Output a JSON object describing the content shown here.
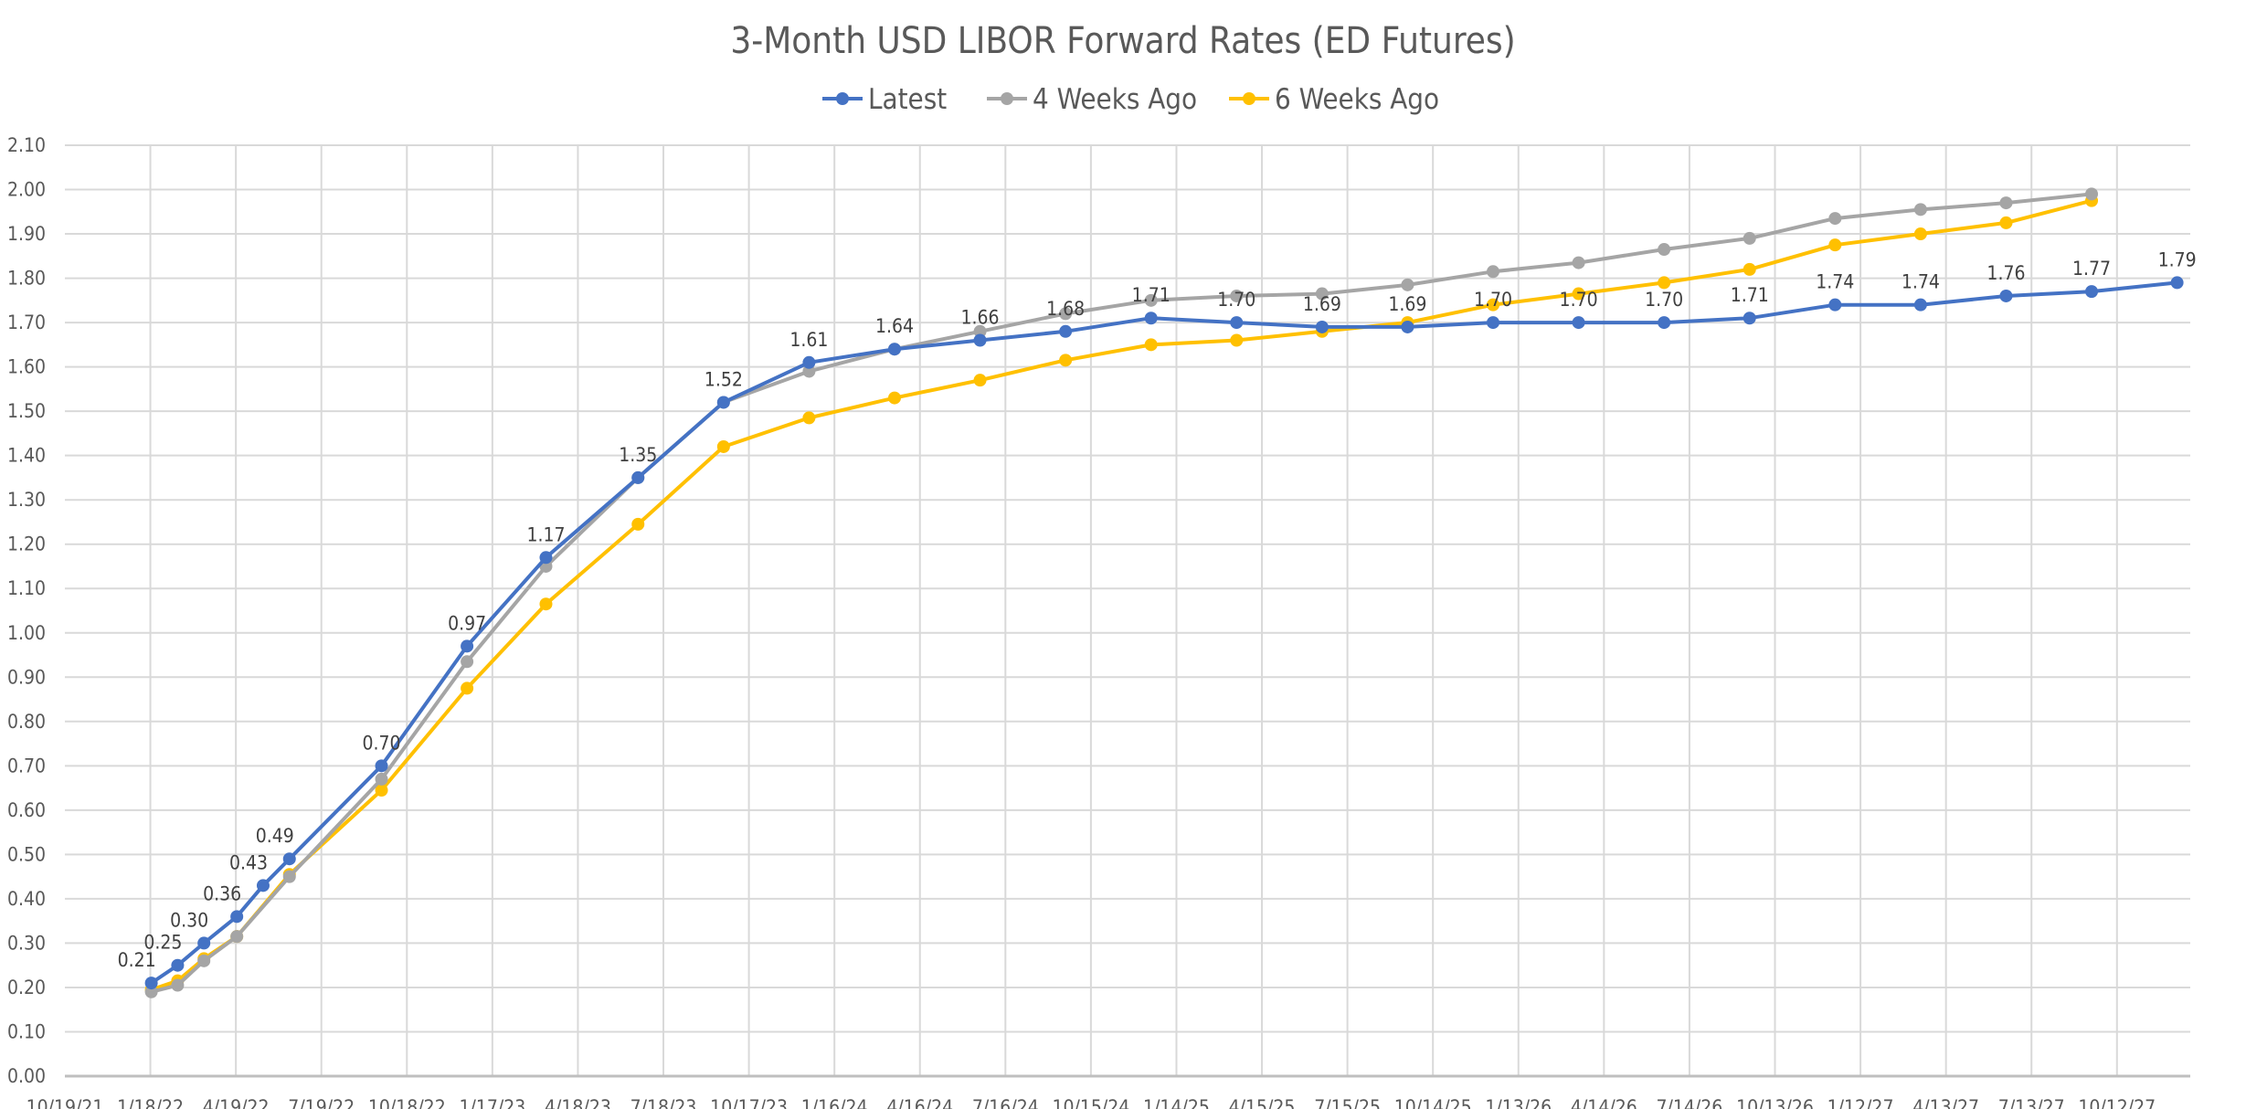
{
  "chart_data": {
    "type": "line",
    "title": "3-Month USD LIBOR Forward Rates (ED Futures)",
    "xlabel": "",
    "ylabel": "",
    "x_axis_type": "date",
    "xlim": [
      "2021-10-19",
      "2027-12-29"
    ],
    "ylim": [
      0,
      2.1
    ],
    "y_ticks": [
      "0.00",
      "0.10",
      "0.20",
      "0.30",
      "0.40",
      "0.50",
      "0.60",
      "0.70",
      "0.80",
      "0.90",
      "1.00",
      "1.10",
      "1.20",
      "1.30",
      "1.40",
      "1.50",
      "1.60",
      "1.70",
      "1.80",
      "1.90",
      "2.00",
      "2.10"
    ],
    "x_ticks": [
      "10/19/21",
      "1/18/22",
      "4/19/22",
      "7/19/22",
      "10/18/22",
      "1/17/23",
      "4/18/23",
      "7/18/23",
      "10/17/23",
      "1/16/24",
      "4/16/24",
      "7/16/24",
      "10/15/24",
      "1/14/25",
      "4/15/25",
      "7/15/25",
      "10/14/25",
      "1/13/26",
      "4/14/26",
      "7/14/26",
      "10/13/26",
      "1/12/27",
      "4/13/27",
      "7/13/27",
      "10/12/27"
    ],
    "grid": true,
    "legend_position": "top",
    "x": [
      "2022-01-19",
      "2022-02-16",
      "2022-03-16",
      "2022-04-20",
      "2022-05-18",
      "2022-06-15",
      "2022-09-21",
      "2022-12-21",
      "2023-03-15",
      "2023-06-21",
      "2023-09-20",
      "2023-12-20",
      "2024-03-20",
      "2024-06-19",
      "2024-09-18",
      "2024-12-18",
      "2025-03-19",
      "2025-06-18",
      "2025-09-17",
      "2025-12-17",
      "2026-03-18",
      "2026-06-17",
      "2026-09-16",
      "2026-12-16",
      "2027-03-17",
      "2027-06-16",
      "2027-09-15",
      "2027-12-15"
    ],
    "series": [
      {
        "name": "Latest",
        "color": "#4472C4",
        "values": [
          0.21,
          0.25,
          0.3,
          0.36,
          0.43,
          0.49,
          0.7,
          0.97,
          1.17,
          1.35,
          1.52,
          1.61,
          1.64,
          1.66,
          1.68,
          1.71,
          1.7,
          1.69,
          1.69,
          1.7,
          1.7,
          1.7,
          1.71,
          1.74,
          1.74,
          1.76,
          1.77,
          1.79
        ],
        "data_labels": [
          "0.21",
          "0.25",
          "0.30",
          "0.36",
          "0.43",
          "0.49",
          "0.70",
          "0.97",
          "1.17",
          "1.35",
          "1.52",
          "1.61",
          "1.64",
          "1.66",
          "1.68",
          "1.71",
          "1.70",
          "1.69",
          "1.69",
          "1.70",
          "1.70",
          "1.70",
          "1.71",
          "1.74",
          "1.74",
          "1.76",
          "1.77",
          "1.79"
        ]
      },
      {
        "name": "4 Weeks Ago",
        "color": "#A5A5A5",
        "values": [
          0.19,
          0.205,
          0.26,
          0.315,
          null,
          0.45,
          0.67,
          0.935,
          1.15,
          1.35,
          1.52,
          1.59,
          1.64,
          1.68,
          1.72,
          1.75,
          1.76,
          1.765,
          1.785,
          1.815,
          1.835,
          1.865,
          1.89,
          1.935,
          1.955,
          1.97,
          1.99,
          null
        ]
      },
      {
        "name": "6 Weeks Ago",
        "color": "#FFC000",
        "values": [
          0.195,
          0.215,
          0.265,
          0.315,
          null,
          0.455,
          0.645,
          0.875,
          1.065,
          1.245,
          1.42,
          1.485,
          1.53,
          1.57,
          1.615,
          1.65,
          1.66,
          1.68,
          1.7,
          1.74,
          1.765,
          1.79,
          1.82,
          1.875,
          1.9,
          1.925,
          1.975,
          null
        ]
      }
    ]
  }
}
